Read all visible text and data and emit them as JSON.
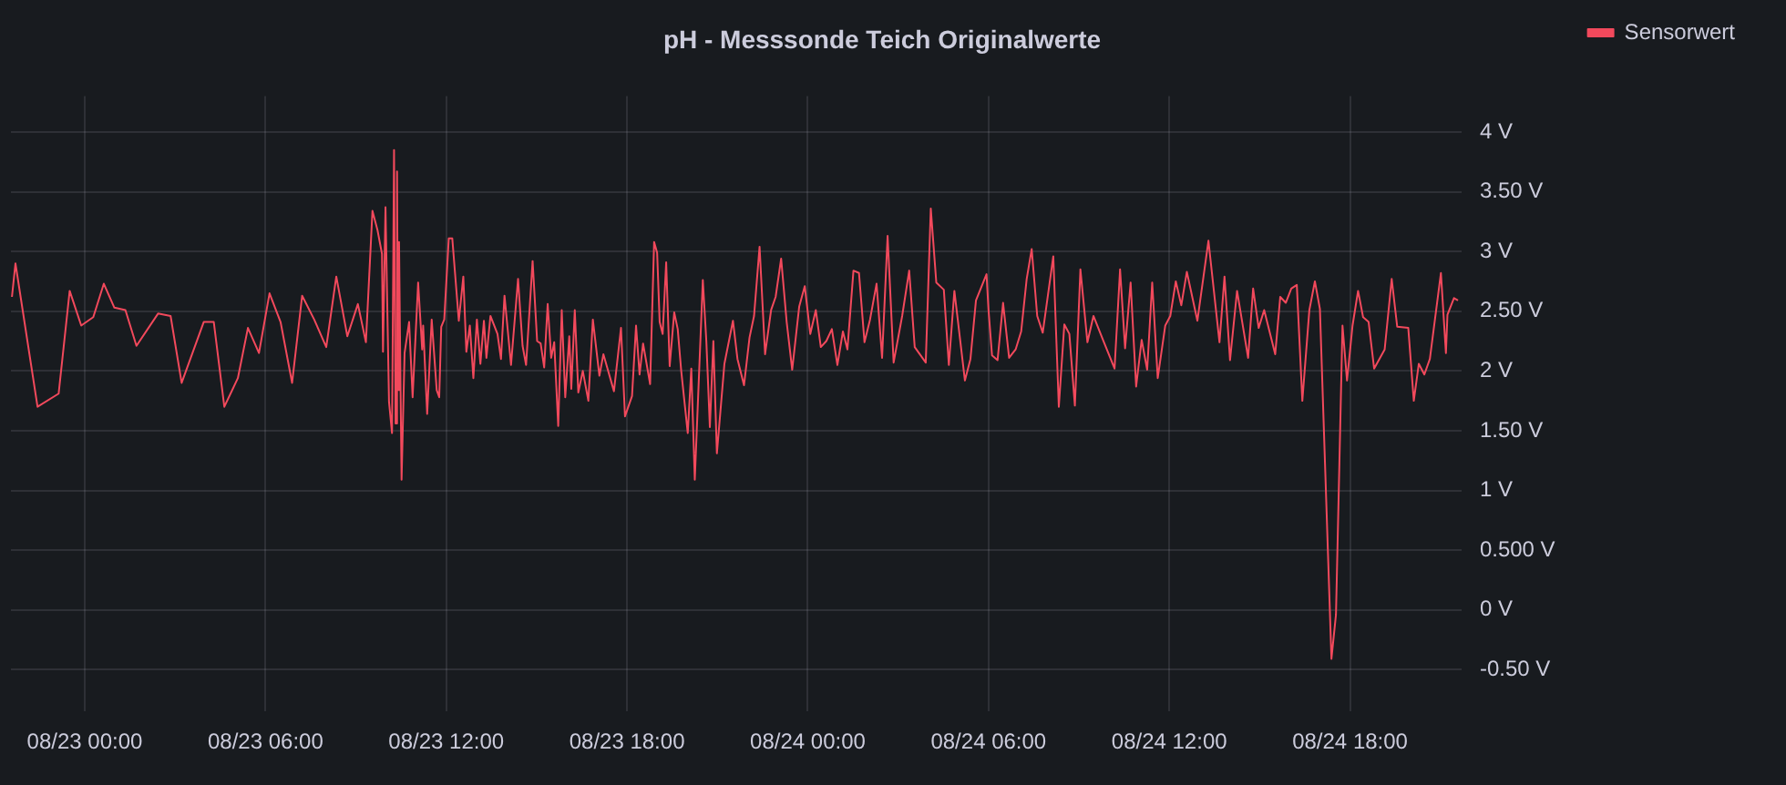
{
  "chart_data": {
    "type": "line",
    "title": "pH - Messsonde Teich Originalwerte",
    "x": [
      "--08-22T21:35",
      "--08-22T21:42",
      "--08-22T22:26",
      "--08-22T23:08",
      "--08-22T23:30",
      "--08-22T23:53",
      "--08-23T00:17",
      "--08-23T00:38",
      "--08-23T00:59",
      "--08-23T01:21",
      "--08-23T01:43",
      "--08-23T02:26",
      "--08-23T02:51",
      "--08-23T03:13",
      "--08-23T03:57",
      "--08-23T04:17",
      "--08-23T04:38",
      "--08-23T05:05",
      "--08-23T05:25",
      "--08-23T05:47",
      "--08-23T06:08",
      "--08-23T06:30",
      "--08-23T06:53",
      "--08-23T07:13",
      "--08-23T07:37",
      "--08-23T08:01",
      "--08-23T08:21",
      "--08-23T08:43",
      "--08-23T09:04",
      "--08-23T09:20",
      "--08-23T09:33",
      "--08-23T09:43",
      "--08-23T09:52",
      "--08-23T09:54",
      "--08-23T09:59",
      "--08-23T10:06",
      "--08-23T10:12",
      "--08-23T10:16",
      "--08-23T10:19",
      "--08-23T10:22",
      "--08-23T10:24",
      "--08-23T10:26",
      "--08-23T10:29",
      "--08-23T10:31",
      "--08-23T10:37",
      "--08-23T10:46",
      "--08-23T10:53",
      "--08-23T11:04",
      "--08-23T11:12",
      "--08-23T11:14",
      "--08-23T11:22",
      "--08-23T11:31",
      "--08-23T11:41",
      "--08-23T11:46",
      "--08-23T11:50",
      "--08-23T11:56",
      "--08-23T12:05",
      "--08-23T12:12",
      "--08-23T12:25",
      "--08-23T12:34",
      "--08-23T12:40",
      "--08-23T12:47",
      "--08-23T12:54",
      "--08-23T13:01",
      "--08-23T13:08",
      "--08-23T13:15",
      "--08-23T13:20",
      "--08-23T13:28",
      "--08-23T13:42",
      "--08-23T13:49",
      "--08-23T13:56",
      "--08-23T14:09",
      "--08-23T14:23",
      "--08-23T14:32",
      "--08-23T14:39",
      "--08-23T14:52",
      "--08-23T15:01",
      "--08-23T15:08",
      "--08-23T15:15",
      "--08-23T15:22",
      "--08-23T15:29",
      "--08-23T15:35",
      "--08-23T15:43",
      "--08-23T15:50",
      "--08-23T15:57",
      "--08-23T16:05",
      "--08-23T16:09",
      "--08-23T16:16",
      "--08-23T16:23",
      "--08-23T16:32",
      "--08-23T16:43",
      "--08-23T16:52",
      "--08-23T17:05",
      "--08-23T17:13",
      "--08-23T17:34",
      "--08-23T17:48",
      "--08-23T17:56",
      "--08-23T18:10",
      "--08-23T18:18",
      "--08-23T18:25",
      "--08-23T18:32",
      "--08-23T18:46",
      "--08-23T18:54",
      "--08-23T19:00",
      "--08-23T19:05",
      "--08-23T19:11",
      "--08-23T19:18",
      "--08-23T19:25",
      "--08-23T19:34",
      "--08-23T19:41",
      "--08-23T19:48",
      "--08-23T20:01",
      "--08-23T20:08",
      "--08-23T20:15",
      "--08-23T20:31",
      "--08-23T20:38",
      "--08-23T20:45",
      "--08-23T20:52",
      "--08-23T20:59",
      "--08-23T21:14",
      "--08-23T21:31",
      "--08-23T21:40",
      "--08-23T21:53",
      "--08-23T22:04",
      "--08-23T22:13",
      "--08-23T22:24",
      "--08-23T22:35",
      "--08-23T22:47",
      "--08-23T22:56",
      "--08-23T23:07",
      "--08-23T23:18",
      "--08-23T23:29",
      "--08-23T23:43",
      "--08-23T23:54",
      "--08-24T00:05",
      "--08-24T00:16",
      "--08-24T00:26",
      "--08-24T00:37",
      "--08-24T00:48",
      "--08-24T00:59",
      "--08-24T01:10",
      "--08-24T01:19",
      "--08-24T01:31",
      "--08-24T01:42",
      "--08-24T01:53",
      "--08-24T02:04",
      "--08-24T02:17",
      "--08-24T02:28",
      "--08-24T02:39",
      "--08-24T02:51",
      "--08-24T03:08",
      "--08-24T03:22",
      "--08-24T03:33",
      "--08-24T03:55",
      "--08-24T04:05",
      "--08-24T04:16",
      "--08-24T04:31",
      "--08-24T04:41",
      "--08-24T04:52",
      "--08-24T05:13",
      "--08-24T05:24",
      "--08-24T05:35",
      "--08-24T05:56",
      "--08-24T06:00",
      "--08-24T06:07",
      "--08-24T06:18",
      "--08-24T06:29",
      "--08-24T06:41",
      "--08-24T06:54",
      "--08-24T07:05",
      "--08-24T07:16",
      "--08-24T07:26",
      "--08-24T07:37",
      "--08-24T07:48",
      "--08-24T08:09",
      "--08-24T08:20",
      "--08-24T08:31",
      "--08-24T08:41",
      "--08-24T08:52",
      "--08-24T09:03",
      "--08-24T09:17",
      "--08-24T09:29",
      "--08-24T09:49",
      "--08-24T10:11",
      "--08-24T10:22",
      "--08-24T10:32",
      "--08-24T10:43",
      "--08-24T10:54",
      "--08-24T11:05",
      "--08-24T11:16",
      "--08-24T11:26",
      "--08-24T11:37",
      "--08-24T11:52",
      "--08-24T12:02",
      "--08-24T12:13",
      "--08-24T12:24",
      "--08-24T12:35",
      "--08-24T12:56",
      "--08-24T13:18",
      "--08-24T13:40",
      "--08-24T13:50",
      "--08-24T14:01",
      "--08-24T14:15",
      "--08-24T14:37",
      "--08-24T14:47",
      "--08-24T14:58",
      "--08-24T15:09",
      "--08-24T15:31",
      "--08-24T15:41",
      "--08-24T15:52",
      "--08-24T16:03",
      "--08-24T16:14",
      "--08-24T16:25",
      "--08-24T16:39",
      "--08-24T16:50",
      "--08-24T17:00",
      "--08-24T17:23",
      "--08-24T17:32",
      "--08-24T17:45",
      "--08-24T17:54",
      "--08-24T18:05",
      "--08-24T18:16",
      "--08-24T18:26",
      "--08-24T18:37",
      "--08-24T18:48",
      "--08-24T19:09",
      "--08-24T19:23",
      "--08-24T19:34",
      "--08-24T19:56",
      "--08-24T20:07",
      "--08-24T20:17",
      "--08-24T20:28",
      "--08-24T20:39",
      "--08-24T21:01",
      "--08-24T21:11",
      "--08-24T21:14",
      "--08-24T21:27",
      "--08-24T21:35"
    ],
    "series": [
      {
        "name": "Sensorwert",
        "color": "#f2495c",
        "values": [
          2.62,
          2.9,
          1.7,
          1.81,
          2.67,
          2.38,
          2.45,
          2.73,
          2.53,
          2.51,
          2.21,
          2.48,
          2.46,
          1.9,
          2.41,
          2.41,
          1.7,
          1.94,
          2.36,
          2.15,
          2.65,
          2.41,
          1.9,
          2.63,
          2.43,
          2.2,
          2.79,
          2.29,
          2.56,
          2.24,
          3.34,
          3.18,
          2.98,
          2.16,
          3.37,
          1.74,
          1.48,
          3.85,
          1.56,
          3.67,
          1.84,
          3.08,
          1.84,
          1.09,
          2.15,
          2.41,
          1.78,
          2.74,
          2.18,
          2.38,
          1.64,
          2.43,
          1.84,
          1.78,
          2.37,
          2.43,
          3.11,
          3.11,
          2.42,
          2.79,
          2.16,
          2.38,
          1.94,
          2.43,
          2.06,
          2.42,
          2.11,
          2.46,
          2.31,
          2.1,
          2.63,
          2.05,
          2.77,
          2.21,
          2.05,
          2.92,
          2.25,
          2.23,
          2.03,
          2.56,
          2.11,
          2.24,
          1.54,
          2.51,
          1.78,
          2.29,
          1.85,
          2.51,
          1.82,
          2.0,
          1.75,
          2.43,
          1.96,
          2.14,
          1.83,
          2.36,
          1.62,
          1.79,
          2.38,
          1.97,
          2.23,
          1.89,
          3.08,
          2.99,
          2.41,
          2.31,
          2.91,
          2.04,
          2.49,
          2.35,
          2.0,
          1.48,
          2.02,
          1.09,
          2.76,
          2.25,
          1.53,
          2.25,
          1.31,
          2.06,
          2.42,
          2.1,
          1.88,
          2.28,
          2.46,
          3.04,
          2.14,
          2.51,
          2.62,
          2.94,
          2.41,
          2.01,
          2.54,
          2.71,
          2.31,
          2.51,
          2.2,
          2.25,
          2.35,
          2.05,
          2.33,
          2.18,
          2.84,
          2.82,
          2.24,
          2.43,
          2.73,
          2.11,
          3.13,
          2.07,
          2.46,
          2.84,
          2.2,
          2.07,
          3.36,
          2.74,
          2.68,
          2.05,
          2.67,
          1.92,
          2.1,
          2.59,
          2.81,
          2.51,
          2.13,
          2.09,
          2.57,
          2.11,
          2.18,
          2.33,
          2.77,
          3.02,
          2.46,
          2.32,
          2.96,
          1.7,
          2.39,
          2.31,
          1.71,
          2.85,
          2.24,
          2.46,
          2.25,
          2.02,
          2.85,
          2.19,
          2.74,
          1.87,
          2.26,
          2.01,
          2.74,
          1.94,
          2.38,
          2.46,
          2.75,
          2.55,
          2.83,
          2.42,
          3.09,
          2.24,
          2.79,
          2.09,
          2.67,
          2.11,
          2.69,
          2.36,
          2.51,
          2.14,
          2.62,
          2.57,
          2.69,
          2.72,
          1.75,
          2.51,
          2.75,
          2.52,
          -0.41,
          -0.04,
          2.38,
          1.92,
          2.38,
          2.67,
          2.45,
          2.41,
          2.02,
          2.18,
          2.77,
          2.37,
          2.36,
          1.75,
          2.06,
          1.97,
          2.1,
          2.82,
          2.15,
          2.47,
          2.61,
          2.59
        ]
      }
    ],
    "xlim": [
      "--08-22T21:33",
      "--08-24T21:42"
    ],
    "xticks": [
      {
        "value": "--08-23T00:00",
        "label": "08/23 00:00"
      },
      {
        "value": "--08-23T06:00",
        "label": "08/23 06:00"
      },
      {
        "value": "--08-23T12:00",
        "label": "08/23 12:00"
      },
      {
        "value": "--08-23T18:00",
        "label": "08/23 18:00"
      },
      {
        "value": "--08-24T00:00",
        "label": "08/24 00:00"
      },
      {
        "value": "--08-24T06:00",
        "label": "08/24 06:00"
      },
      {
        "value": "--08-24T12:00",
        "label": "08/24 12:00"
      },
      {
        "value": "--08-24T18:00",
        "label": "08/24 18:00"
      }
    ],
    "ylim": [
      -0.85,
      4.3
    ],
    "yticks": [
      {
        "value": -0.5,
        "label": "-0.50 V"
      },
      {
        "value": 0,
        "label": "0 V"
      },
      {
        "value": 0.5,
        "label": "0.500 V"
      },
      {
        "value": 1,
        "label": "1 V"
      },
      {
        "value": 1.5,
        "label": "1.50 V"
      },
      {
        "value": 2,
        "label": "2 V"
      },
      {
        "value": 2.5,
        "label": "2.50 V"
      },
      {
        "value": 3,
        "label": "3 V"
      },
      {
        "value": 3.5,
        "label": "3.50 V"
      },
      {
        "value": 4,
        "label": "4 V"
      }
    ],
    "grid": true,
    "legend": "top right",
    "marker": "none",
    "line_style": "solid"
  }
}
